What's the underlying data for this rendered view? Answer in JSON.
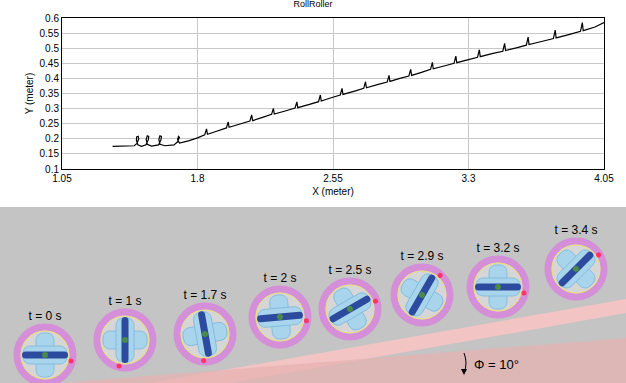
{
  "chart_data": {
    "type": "line",
    "title": "RollRoller",
    "x_label": "X (meter)",
    "y_label": "Y (meter)",
    "x": [
      1.33,
      1.4,
      1.45,
      1.465,
      1.475,
      1.472,
      1.463,
      1.462,
      1.47,
      1.49,
      1.515,
      1.528,
      1.53,
      1.522,
      1.516,
      1.522,
      1.545,
      1.585,
      1.598,
      1.6,
      1.592,
      1.586,
      1.592,
      1.62,
      1.67,
      1.69,
      1.7,
      1.695,
      1.69,
      1.7,
      1.75,
      1.8,
      1.84,
      1.85,
      1.855,
      1.91,
      1.96,
      1.97,
      1.975,
      2.04,
      2.09,
      2.1,
      2.105,
      2.16,
      2.21,
      2.22,
      2.225,
      2.29,
      2.34,
      2.35,
      2.355,
      2.42,
      2.47,
      2.48,
      2.485,
      2.54,
      2.59,
      2.6,
      2.605,
      2.67,
      2.72,
      2.73,
      2.735,
      2.8,
      2.85,
      2.86,
      2.865,
      2.92,
      2.97,
      2.98,
      2.985,
      3.04,
      3.09,
      3.1,
      3.105,
      3.17,
      3.22,
      3.23,
      3.235,
      3.3,
      3.35,
      3.36,
      3.365,
      3.43,
      3.49,
      3.5,
      3.505,
      3.57,
      3.62,
      3.63,
      3.635,
      3.71,
      3.77,
      3.78,
      3.785,
      3.86,
      3.92,
      3.93,
      3.935,
      4.0,
      4.05
    ],
    "values": [
      0.175,
      0.175,
      0.177,
      0.185,
      0.2,
      0.208,
      0.206,
      0.195,
      0.18,
      0.175,
      0.18,
      0.197,
      0.208,
      0.21,
      0.198,
      0.182,
      0.176,
      0.18,
      0.197,
      0.208,
      0.21,
      0.198,
      0.182,
      0.177,
      0.18,
      0.19,
      0.205,
      0.208,
      0.198,
      0.186,
      0.193,
      0.203,
      0.213,
      0.233,
      0.215,
      0.226,
      0.236,
      0.256,
      0.238,
      0.25,
      0.259,
      0.279,
      0.26,
      0.271,
      0.281,
      0.301,
      0.282,
      0.293,
      0.302,
      0.322,
      0.303,
      0.314,
      0.323,
      0.345,
      0.325,
      0.336,
      0.345,
      0.367,
      0.347,
      0.358,
      0.367,
      0.389,
      0.369,
      0.38,
      0.388,
      0.41,
      0.39,
      0.4,
      0.408,
      0.43,
      0.41,
      0.42,
      0.43,
      0.453,
      0.432,
      0.442,
      0.45,
      0.474,
      0.452,
      0.462,
      0.47,
      0.495,
      0.472,
      0.482,
      0.49,
      0.516,
      0.492,
      0.502,
      0.51,
      0.537,
      0.512,
      0.523,
      0.532,
      0.56,
      0.534,
      0.546,
      0.556,
      0.585,
      0.558,
      0.57,
      0.585
    ],
    "color": "#000000",
    "xlim": [
      1.05,
      4.05
    ],
    "xticks": [
      1.05,
      1.8,
      2.55,
      3.3,
      4.05
    ],
    "ylim": [
      0.1,
      0.6
    ],
    "yticks": [
      0.1,
      0.15,
      0.2,
      0.25,
      0.3,
      0.35,
      0.4,
      0.45,
      0.5,
      0.55,
      0.6
    ],
    "grid": true
  },
  "diagram": {
    "snapshots": [
      "t = 0 s",
      "t = 1 s",
      "t = 1.7 s",
      "t = 2 s",
      "t = 2.5 s",
      "t = 2.9 s",
      "t = 3.2 s",
      "t = 3.4 s"
    ],
    "slope": {
      "label": "Φ = 10°",
      "value": 10
    }
  }
}
